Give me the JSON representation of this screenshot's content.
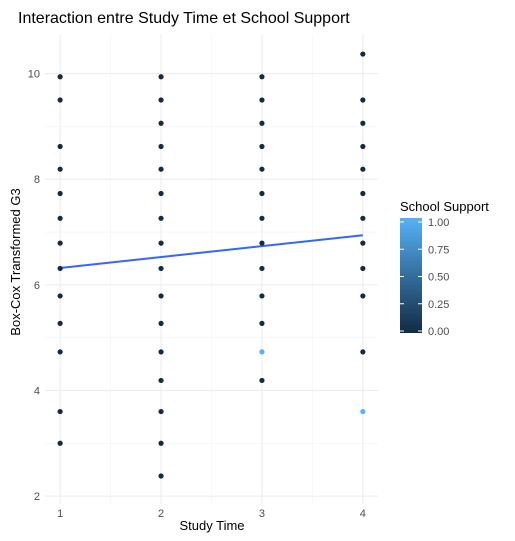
{
  "chart_data": {
    "type": "scatter",
    "title": "Interaction entre Study Time et School Support",
    "xlabel": "Study Time",
    "ylabel": "Box-Cox Transformed G3",
    "xlim": [
      0.85,
      4.15
    ],
    "ylim": [
      1.85,
      10.75
    ],
    "x_ticks": [
      1,
      2,
      3,
      4
    ],
    "y_ticks": [
      2,
      4,
      6,
      8,
      10
    ],
    "grid": true,
    "legend": {
      "title": "School Support",
      "placement": "right",
      "type": "colorbar",
      "ticks": [
        "1.00",
        "0.75",
        "0.50",
        "0.25",
        "0.00"
      ],
      "tick_values": [
        1.0,
        0.75,
        0.5,
        0.25,
        0.0
      ],
      "color_low": "#132B43",
      "color_high": "#56B1F7"
    },
    "trend_line": {
      "x": [
        1,
        4
      ],
      "y": [
        6.32,
        6.94
      ],
      "color": "#3366FF"
    },
    "points": [
      {
        "x": 1,
        "y": 9.94,
        "s": 0
      },
      {
        "x": 1,
        "y": 9.5,
        "s": 0
      },
      {
        "x": 1,
        "y": 8.62,
        "s": 0
      },
      {
        "x": 1,
        "y": 8.19,
        "s": 0
      },
      {
        "x": 1,
        "y": 7.73,
        "s": 0
      },
      {
        "x": 1,
        "y": 7.26,
        "s": 0
      },
      {
        "x": 1,
        "y": 6.79,
        "s": 0
      },
      {
        "x": 1,
        "y": 6.31,
        "s": 0
      },
      {
        "x": 1,
        "y": 5.79,
        "s": 0
      },
      {
        "x": 1,
        "y": 5.27,
        "s": 0
      },
      {
        "x": 1,
        "y": 4.73,
        "s": 0
      },
      {
        "x": 1,
        "y": 3.6,
        "s": 0
      },
      {
        "x": 1,
        "y": 3.0,
        "s": 0
      },
      {
        "x": 2,
        "y": 9.94,
        "s": 0
      },
      {
        "x": 2,
        "y": 9.5,
        "s": 0
      },
      {
        "x": 2,
        "y": 9.06,
        "s": 0
      },
      {
        "x": 2,
        "y": 8.62,
        "s": 0
      },
      {
        "x": 2,
        "y": 8.19,
        "s": 0
      },
      {
        "x": 2,
        "y": 7.73,
        "s": 0
      },
      {
        "x": 2,
        "y": 7.26,
        "s": 0
      },
      {
        "x": 2,
        "y": 6.79,
        "s": 0
      },
      {
        "x": 2,
        "y": 6.31,
        "s": 0
      },
      {
        "x": 2,
        "y": 5.79,
        "s": 0
      },
      {
        "x": 2,
        "y": 5.27,
        "s": 0
      },
      {
        "x": 2,
        "y": 4.73,
        "s": 0
      },
      {
        "x": 2,
        "y": 4.19,
        "s": 0
      },
      {
        "x": 2,
        "y": 3.6,
        "s": 0
      },
      {
        "x": 2,
        "y": 3.0,
        "s": 0
      },
      {
        "x": 2,
        "y": 2.38,
        "s": 0
      },
      {
        "x": 3,
        "y": 9.94,
        "s": 0
      },
      {
        "x": 3,
        "y": 9.5,
        "s": 0
      },
      {
        "x": 3,
        "y": 9.06,
        "s": 0
      },
      {
        "x": 3,
        "y": 8.62,
        "s": 0
      },
      {
        "x": 3,
        "y": 8.19,
        "s": 0
      },
      {
        "x": 3,
        "y": 7.73,
        "s": 0
      },
      {
        "x": 3,
        "y": 7.26,
        "s": 0
      },
      {
        "x": 3,
        "y": 6.79,
        "s": 0
      },
      {
        "x": 3,
        "y": 6.31,
        "s": 0
      },
      {
        "x": 3,
        "y": 5.79,
        "s": 0
      },
      {
        "x": 3,
        "y": 5.27,
        "s": 0
      },
      {
        "x": 3,
        "y": 4.73,
        "s": 1
      },
      {
        "x": 3,
        "y": 4.19,
        "s": 0
      },
      {
        "x": 4,
        "y": 10.37,
        "s": 0
      },
      {
        "x": 4,
        "y": 9.5,
        "s": 0
      },
      {
        "x": 4,
        "y": 9.06,
        "s": 0
      },
      {
        "x": 4,
        "y": 8.62,
        "s": 0
      },
      {
        "x": 4,
        "y": 8.19,
        "s": 0
      },
      {
        "x": 4,
        "y": 7.73,
        "s": 0
      },
      {
        "x": 4,
        "y": 7.26,
        "s": 0
      },
      {
        "x": 4,
        "y": 6.79,
        "s": 0
      },
      {
        "x": 4,
        "y": 6.31,
        "s": 0
      },
      {
        "x": 4,
        "y": 5.79,
        "s": 0
      },
      {
        "x": 4,
        "y": 4.73,
        "s": 0
      },
      {
        "x": 4,
        "y": 3.6,
        "s": 1
      }
    ]
  }
}
